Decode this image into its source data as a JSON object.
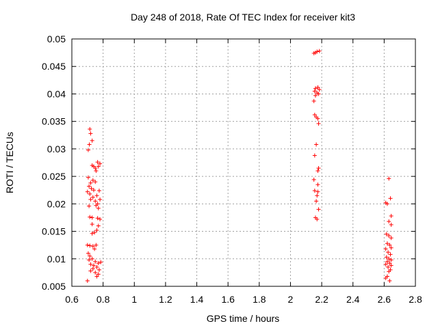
{
  "chart_data": {
    "type": "scatter",
    "title": "Day 248 of 2018, Rate Of TEC Index for receiver kit3",
    "xlabel": "GPS time / hours",
    "ylabel": "ROTI / TECUs",
    "xlim": [
      0.6,
      2.8
    ],
    "ylim": [
      0.005,
      0.05
    ],
    "x_ticks": [
      0.6,
      0.8,
      1.0,
      1.2,
      1.4,
      1.6,
      1.8,
      2.0,
      2.2,
      2.4,
      2.6,
      2.8
    ],
    "x_tick_labels": [
      "0.6",
      "0.8",
      "1",
      "1.2",
      "1.4",
      "1.6",
      "1.8",
      "2",
      "2.2",
      "2.4",
      "2.6",
      "2.8"
    ],
    "y_ticks": [
      0.005,
      0.01,
      0.015,
      0.02,
      0.025,
      0.03,
      0.035,
      0.04,
      0.045,
      0.05
    ],
    "y_tick_labels": [
      "0.005",
      "0.01",
      "0.015",
      "0.02",
      "0.025",
      "0.03",
      "0.035",
      "0.04",
      "0.045",
      "0.05"
    ],
    "grid": true,
    "marker": "+",
    "color": "#ff0000",
    "series": [
      {
        "name": "ROTI",
        "points": [
          [
            0.715,
            0.0336
          ],
          [
            0.72,
            0.0328
          ],
          [
            0.73,
            0.0315
          ],
          [
            0.705,
            0.0298
          ],
          [
            0.712,
            0.0308
          ],
          [
            0.73,
            0.027
          ],
          [
            0.74,
            0.0268
          ],
          [
            0.75,
            0.0265
          ],
          [
            0.765,
            0.0276
          ],
          [
            0.77,
            0.0268
          ],
          [
            0.78,
            0.0273
          ],
          [
            0.755,
            0.026
          ],
          [
            0.705,
            0.0248
          ],
          [
            0.72,
            0.0238
          ],
          [
            0.735,
            0.0243
          ],
          [
            0.75,
            0.024
          ],
          [
            0.71,
            0.0232
          ],
          [
            0.725,
            0.0228
          ],
          [
            0.7,
            0.0222
          ],
          [
            0.715,
            0.0218
          ],
          [
            0.74,
            0.0225
          ],
          [
            0.76,
            0.0215
          ],
          [
            0.775,
            0.0224
          ],
          [
            0.72,
            0.0208
          ],
          [
            0.735,
            0.0212
          ],
          [
            0.75,
            0.0205
          ],
          [
            0.765,
            0.02
          ],
          [
            0.78,
            0.0208
          ],
          [
            0.755,
            0.0197
          ],
          [
            0.71,
            0.0196
          ],
          [
            0.77,
            0.0192
          ],
          [
            0.715,
            0.0176
          ],
          [
            0.73,
            0.0175
          ],
          [
            0.765,
            0.0174
          ],
          [
            0.78,
            0.0172
          ],
          [
            0.73,
            0.0163
          ],
          [
            0.77,
            0.016
          ],
          [
            0.73,
            0.0146
          ],
          [
            0.745,
            0.0148
          ],
          [
            0.76,
            0.0152
          ],
          [
            0.7,
            0.0125
          ],
          [
            0.715,
            0.0124
          ],
          [
            0.735,
            0.0123
          ],
          [
            0.755,
            0.0125
          ],
          [
            0.705,
            0.011
          ],
          [
            0.715,
            0.0105
          ],
          [
            0.745,
            0.0118
          ],
          [
            0.71,
            0.0098
          ],
          [
            0.73,
            0.01
          ],
          [
            0.75,
            0.0095
          ],
          [
            0.77,
            0.0092
          ],
          [
            0.785,
            0.0094
          ],
          [
            0.72,
            0.009
          ],
          [
            0.74,
            0.0088
          ],
          [
            0.76,
            0.0085
          ],
          [
            0.735,
            0.0082
          ],
          [
            0.775,
            0.008
          ],
          [
            0.72,
            0.0078
          ],
          [
            0.75,
            0.0075
          ],
          [
            0.77,
            0.0072
          ],
          [
            0.76,
            0.0068
          ],
          [
            0.7,
            0.006
          ],
          [
            2.16,
            0.0475
          ],
          [
            2.17,
            0.0477
          ],
          [
            2.185,
            0.0478
          ],
          [
            2.15,
            0.0474
          ],
          [
            2.16,
            0.041
          ],
          [
            2.175,
            0.0412
          ],
          [
            2.185,
            0.0408
          ],
          [
            2.155,
            0.0405
          ],
          [
            2.17,
            0.0402
          ],
          [
            2.18,
            0.04
          ],
          [
            2.16,
            0.0397
          ],
          [
            2.15,
            0.0387
          ],
          [
            2.155,
            0.0362
          ],
          [
            2.165,
            0.0358
          ],
          [
            2.175,
            0.0355
          ],
          [
            2.18,
            0.0346
          ],
          [
            2.165,
            0.0308
          ],
          [
            2.155,
            0.0288
          ],
          [
            2.18,
            0.0265
          ],
          [
            2.175,
            0.026
          ],
          [
            2.15,
            0.0244
          ],
          [
            2.175,
            0.0235
          ],
          [
            2.155,
            0.0224
          ],
          [
            2.175,
            0.0222
          ],
          [
            2.17,
            0.0215
          ],
          [
            2.165,
            0.0205
          ],
          [
            2.18,
            0.019
          ],
          [
            2.16,
            0.0175
          ],
          [
            2.17,
            0.0172
          ],
          [
            2.63,
            0.0246
          ],
          [
            2.64,
            0.021
          ],
          [
            2.61,
            0.0202
          ],
          [
            2.62,
            0.02
          ],
          [
            2.645,
            0.0178
          ],
          [
            2.63,
            0.0168
          ],
          [
            2.645,
            0.0162
          ],
          [
            2.615,
            0.0145
          ],
          [
            2.63,
            0.0142
          ],
          [
            2.645,
            0.0138
          ],
          [
            2.62,
            0.0128
          ],
          [
            2.635,
            0.0125
          ],
          [
            2.645,
            0.012
          ],
          [
            2.61,
            0.0118
          ],
          [
            2.625,
            0.0112
          ],
          [
            2.64,
            0.0108
          ],
          [
            2.615,
            0.0103
          ],
          [
            2.63,
            0.01
          ],
          [
            2.645,
            0.0098
          ],
          [
            2.62,
            0.0095
          ],
          [
            2.635,
            0.0092
          ],
          [
            2.61,
            0.009
          ],
          [
            2.645,
            0.0088
          ],
          [
            2.625,
            0.0085
          ],
          [
            2.64,
            0.008
          ],
          [
            2.63,
            0.0077
          ],
          [
            2.62,
            0.0068
          ],
          [
            2.61,
            0.0065
          ],
          [
            2.635,
            0.006
          ]
        ]
      }
    ]
  }
}
